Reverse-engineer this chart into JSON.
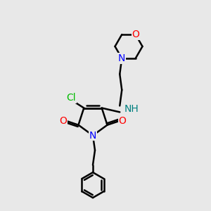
{
  "bg_color": "#e8e8e8",
  "bond_color": "#000000",
  "N_color": "#0000ff",
  "O_color": "#ff0000",
  "Cl_color": "#00bb00",
  "NH_color": "#008080",
  "figsize": [
    3.0,
    3.0
  ],
  "dpi": 100,
  "xlim": [
    0,
    10
  ],
  "ylim": [
    0,
    10
  ]
}
